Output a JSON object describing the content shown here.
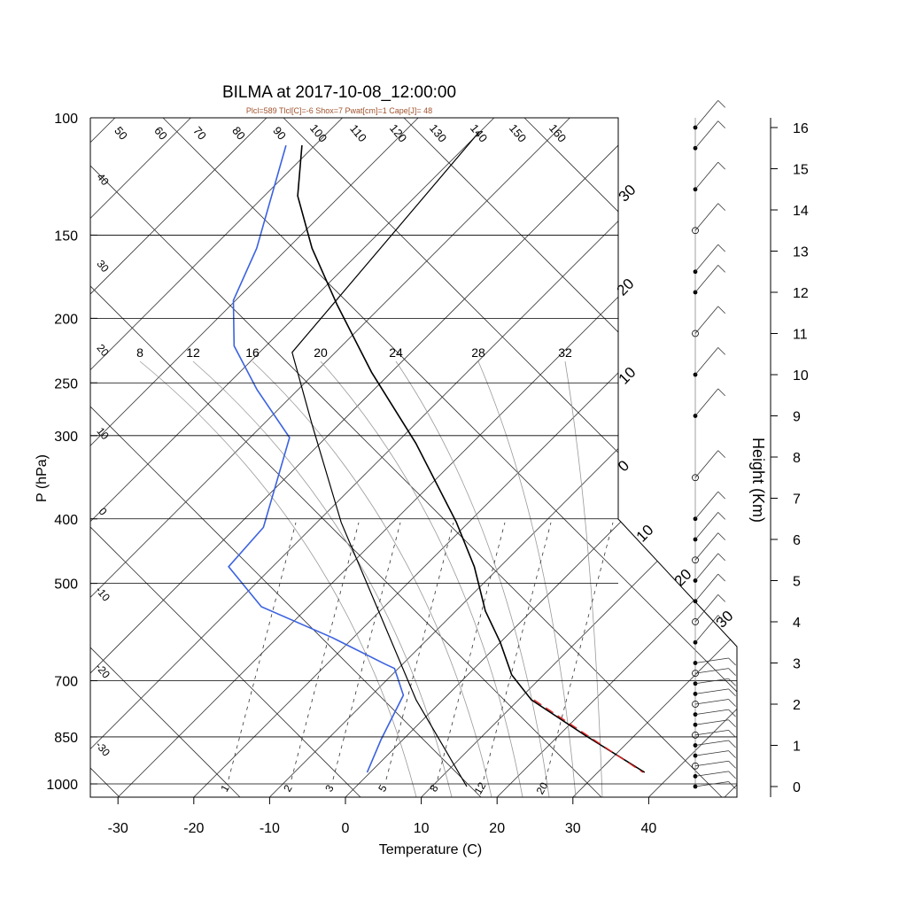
{
  "chart_data": {
    "type": "line",
    "title": "BILMA at 2017-10-08_12:00:00",
    "subtitle": "Plcl=589 Tlcl[C]=-6 Shox=7 Pwat[cm]=1 Cape[J]= 48",
    "xlabel": "Temperature (C)",
    "ylabel": "P (hPa)",
    "y2label": "Height (Km)",
    "xticks": [
      "-30",
      "-20",
      "-10",
      "0",
      "10",
      "20",
      "30",
      "40"
    ],
    "pressure_ticks": [
      "100",
      "150",
      "200",
      "250",
      "300",
      "400",
      "500",
      "700",
      "850",
      "1000"
    ],
    "height_ticks": [
      "0",
      "1",
      "2",
      "3",
      "4",
      "5",
      "6",
      "7",
      "8",
      "9",
      "10",
      "11",
      "12",
      "13",
      "14",
      "15",
      "16"
    ],
    "dry_adiabat_labels": [
      "50",
      "60",
      "70",
      "80",
      "90",
      "100",
      "110",
      "120",
      "130",
      "140",
      "150",
      "160"
    ],
    "isotherm_left_labels": [
      "40",
      "30",
      "20",
      "10",
      "0",
      "-10",
      "-20",
      "-30"
    ],
    "isotherm_right_labels": [
      "30",
      "20",
      "10",
      "0",
      "10",
      "20",
      "30"
    ],
    "moist_adiabat_labels": [
      "8",
      "12",
      "16",
      "20",
      "24",
      "28",
      "32"
    ],
    "mixing_ratio_labels": [
      "1",
      "2",
      "3",
      "5",
      "8",
      "12",
      "20"
    ],
    "series": [
      {
        "name": "temperature",
        "color": "#000000",
        "points": [
          [
            961,
            36.2
          ],
          [
            912,
            31.0
          ],
          [
            845,
            23.4
          ],
          [
            748,
            11.7
          ],
          [
            686,
            5.8
          ],
          [
            613,
            0
          ],
          [
            550,
            -6.1
          ],
          [
            472,
            -13.4
          ],
          [
            405,
            -21.6
          ],
          [
            308,
            -37.4
          ],
          [
            241,
            -52.6
          ],
          [
            191,
            -66
          ],
          [
            157,
            -76.8
          ],
          [
            131,
            -85.6
          ],
          [
            110,
            -91.7
          ]
        ]
      },
      {
        "name": "dewpoint",
        "color": "#3b62e0",
        "points": [
          [
            961,
            -0.4
          ],
          [
            858,
            -2.9
          ],
          [
            736,
            -5.8
          ],
          [
            671,
            -10.5
          ],
          [
            661,
            -12.3
          ],
          [
            603,
            -22.8
          ],
          [
            542,
            -36.2
          ],
          [
            472,
            -45.8
          ],
          [
            412,
            -46.4
          ],
          [
            302,
            -54.8
          ],
          [
            256,
            -65.4
          ],
          [
            220,
            -74.2
          ],
          [
            188,
            -80.3
          ],
          [
            157,
            -84.1
          ],
          [
            110,
            -93.8
          ]
        ]
      },
      {
        "name": "parcel",
        "color": "#000000",
        "points": [
          [
            1009,
            14.6
          ],
          [
            748,
            -3.5
          ],
          [
            405,
            -36.8
          ],
          [
            289,
            -53.5
          ],
          [
            225,
            -65.7
          ],
          [
            105,
            -70.1
          ]
        ]
      }
    ],
    "wind_levels_km": [
      0,
      0.25,
      0.5,
      0.75,
      1,
      1.25,
      1.5,
      1.75,
      2,
      2.25,
      2.5,
      2.75,
      3,
      3.5,
      4,
      4.5,
      5,
      5.5,
      6,
      6.5,
      7.5,
      9,
      10,
      11,
      12,
      12.5,
      13.5,
      14.5,
      15.5,
      16
    ]
  }
}
